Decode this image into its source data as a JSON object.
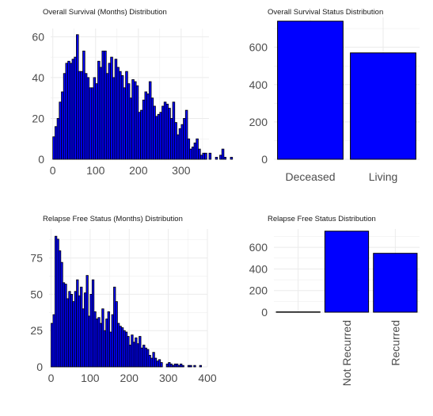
{
  "colors": {
    "bar_fill": "#0000ff",
    "bar_stroke": "#000000",
    "grid": "#ebebeb",
    "tick_text": "#4d4d4d"
  },
  "chart_data": [
    {
      "id": "os_months",
      "type": "bar",
      "title": "Overall Survival (Months) Distribution",
      "xlabel": "",
      "ylabel": "",
      "bin_start": 0,
      "bin_width": 5,
      "values": [
        11,
        16,
        20,
        28,
        33,
        42,
        47,
        48,
        47,
        49,
        50,
        61,
        43,
        43,
        53,
        42,
        40,
        35,
        35,
        40,
        37,
        48,
        45,
        53,
        53,
        42,
        47,
        50,
        40,
        49,
        45,
        43,
        41,
        35,
        43,
        37,
        30,
        39,
        38,
        36,
        23,
        24,
        29,
        33,
        32,
        38,
        30,
        26,
        21,
        22,
        23,
        26,
        28,
        27,
        25,
        20,
        28,
        18,
        12,
        15,
        17,
        20,
        24,
        10,
        5,
        6,
        8,
        10,
        5,
        2,
        3,
        3,
        0,
        3,
        0,
        0,
        1,
        0,
        2,
        5,
        1,
        0,
        0,
        1
      ],
      "xlim": [
        -5,
        365
      ],
      "ylim": [
        0,
        64
      ],
      "x_ticks": [
        0,
        100,
        200,
        300
      ],
      "y_ticks": [
        0,
        20,
        40,
        60
      ],
      "grid": true
    },
    {
      "id": "os_status",
      "type": "bar",
      "title": "Overall Survival Status Distribution",
      "xlabel": "",
      "ylabel": "",
      "categories": [
        "Deceased",
        "Living"
      ],
      "values": [
        740,
        570
      ],
      "ylim": [
        0,
        760
      ],
      "y_ticks": [
        0,
        200,
        400,
        600
      ],
      "grid": true
    },
    {
      "id": "rfs_months",
      "type": "bar",
      "title": "Relapse Free Status (Months) Distribution",
      "xlabel": "",
      "ylabel": "",
      "bin_start": 0,
      "bin_width": 5,
      "values": [
        30,
        36,
        90,
        88,
        80,
        72,
        58,
        57,
        47,
        52,
        50,
        45,
        52,
        60,
        49,
        55,
        40,
        51,
        63,
        35,
        50,
        60,
        38,
        33,
        34,
        30,
        40,
        25,
        33,
        38,
        24,
        36,
        55,
        45,
        30,
        28,
        27,
        25,
        24,
        21,
        15,
        22,
        17,
        20,
        16,
        21,
        13,
        15,
        13,
        12,
        8,
        6,
        10,
        6,
        4,
        5,
        3,
        0,
        0,
        2,
        3,
        2,
        1,
        2,
        2,
        1,
        2,
        1,
        0,
        0,
        1,
        1,
        0,
        1,
        0,
        0,
        1,
        0
      ],
      "xlim": [
        -5,
        400
      ],
      "ylim": [
        0,
        95
      ],
      "x_ticks": [
        0,
        100,
        200,
        300,
        400
      ],
      "y_ticks": [
        0,
        25,
        50,
        75
      ],
      "grid": true
    },
    {
      "id": "rfs_status",
      "type": "bar",
      "title": "Relapse Free Status Distribution",
      "xlabel": "",
      "ylabel": "",
      "categories": [
        "",
        "Not Recurred",
        "Recurred"
      ],
      "values": [
        3,
        750,
        545
      ],
      "ylim": [
        0,
        770
      ],
      "y_ticks": [
        0,
        200,
        400,
        600
      ],
      "grid": true
    }
  ]
}
